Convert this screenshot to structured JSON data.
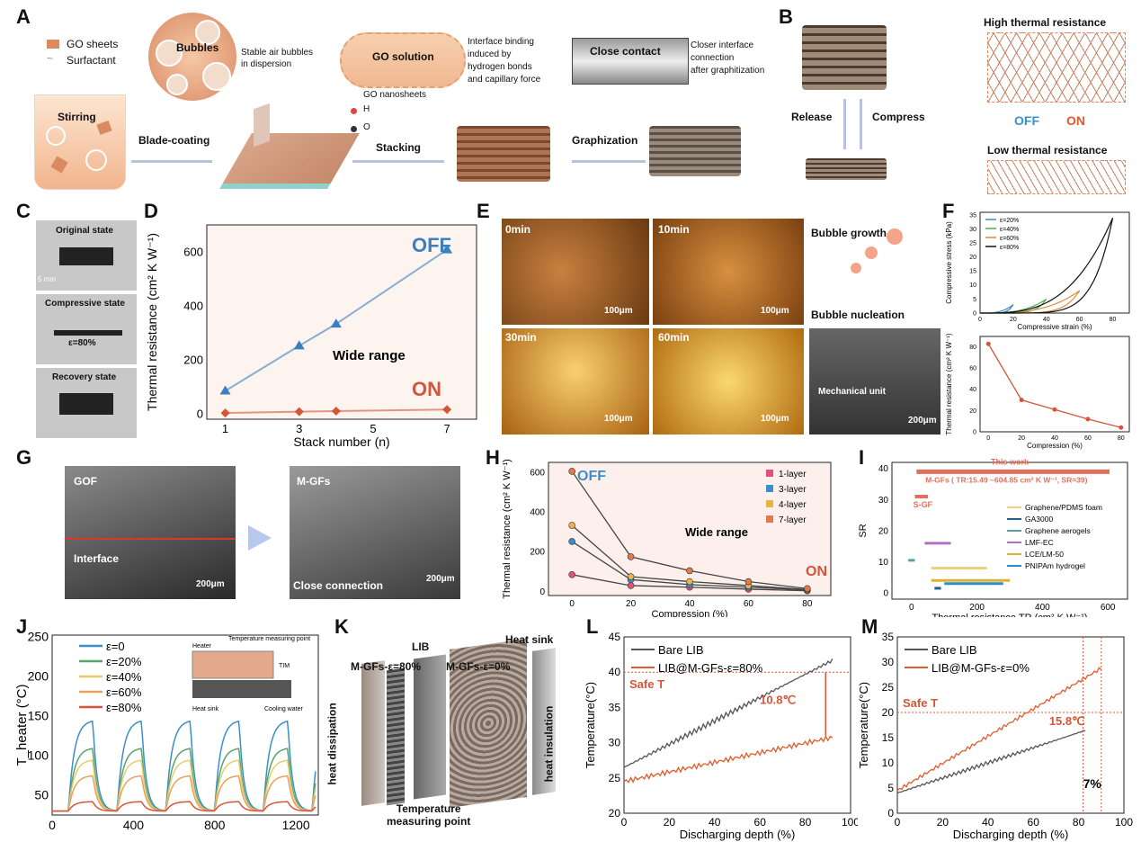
{
  "panel_letters": [
    "A",
    "B",
    "C",
    "D",
    "E",
    "F",
    "G",
    "H",
    "I",
    "J",
    "K",
    "L",
    "M"
  ],
  "a": {
    "legend_go_sheets": "GO sheets",
    "legend_surfactant": "Surfactant",
    "bubbles": "Bubbles",
    "stable": "Stable air bubbles\nin dispersion",
    "stirring": "Stirring",
    "blade": "Blade-coating",
    "go_solution": "GO solution",
    "interface": "Interface binding\ninduced by\nhydrogen bonds\nand capillary force",
    "nanosheets": "GO nanosheets",
    "h": "H",
    "o": "O",
    "stacking": "Stacking",
    "close_contact": "Close contact",
    "closer": "Closer interface\nconnection\nafter graphitization",
    "graphization": "Graphization"
  },
  "b": {
    "high": "High thermal resistance",
    "release": "Release",
    "compress": "Compress",
    "off": "OFF",
    "on": "ON",
    "low": "Low thermal resistance"
  },
  "c": {
    "original": "Original state",
    "scale": "5 mm",
    "compressive": "Compressive state",
    "strain": "ε=80%",
    "recovery": "Recovery state"
  },
  "e": {
    "t0": "0min",
    "t10": "10min",
    "t30": "30min",
    "t60": "60min",
    "scale": "100μm",
    "growth": "Bubble growth",
    "nucleation": "Bubble nucleation",
    "mech": "Mechanical unit",
    "scale2": "200μm"
  },
  "g": {
    "gof": "GOF",
    "interface": "Interface",
    "scale": "200μm",
    "mgfs": "M-GFs",
    "close": "Close connection"
  },
  "k": {
    "lib": "LIB",
    "heat_sink": "Heat sink",
    "mgfs80": "M-GFs-ε=80%",
    "mgfs0": "M-GFs-ε=0%",
    "dissipation": "heat dissipation",
    "insulation": "heat insulation",
    "temp_point": "Temperature\nmeasuring point"
  },
  "chart_data": [
    {
      "id": "D",
      "type": "scatter",
      "xlabel": "Stack number (n)",
      "ylabel": "Thermal resistance (cm² K W⁻¹)",
      "xlim": [
        0.5,
        7.8
      ],
      "ylim": [
        -20,
        700
      ],
      "xticks": [
        1,
        3,
        5,
        7
      ],
      "yticks": [
        0,
        200,
        400,
        600
      ],
      "series": [
        {
          "name": "OFF",
          "x": [
            1,
            3,
            4,
            7
          ],
          "y": [
            85,
            252,
            333,
            608
          ],
          "color": "#3a7fc0"
        },
        {
          "name": "ON",
          "x": [
            1,
            3,
            4,
            7
          ],
          "y": [
            3,
            8,
            10,
            16
          ],
          "color": "#d4553a"
        }
      ],
      "annotation": "Wide range"
    },
    {
      "id": "F1",
      "type": "line",
      "xlabel": "Compressive strain (%)",
      "ylabel": "Compressive stress (kPa)",
      "xticks": [
        0,
        20,
        40,
        60,
        80
      ],
      "yticks": [
        0,
        5,
        10,
        15,
        20,
        25,
        30,
        35
      ],
      "legend": [
        "ε=20%",
        "ε=40%",
        "ε=60%",
        "ε=80%"
      ],
      "legend_colors": [
        "#3a8fc9",
        "#4caf50",
        "#e08a3c",
        "#111111"
      ]
    },
    {
      "id": "F2",
      "type": "line",
      "xlabel": "Compression (%)",
      "ylabel": "Thermal resistance (cm² K W⁻¹)",
      "x": [
        0,
        20,
        40,
        60,
        80
      ],
      "y": [
        83,
        30,
        21,
        12,
        4
      ],
      "xticks": [
        0,
        20,
        40,
        60,
        80
      ],
      "yticks": [
        0,
        20,
        40,
        60,
        80
      ]
    },
    {
      "id": "H",
      "type": "line",
      "xlabel": "Compression (%)",
      "ylabel": "Thermal resistance (cm² K W⁻¹)",
      "x": [
        0,
        20,
        40,
        60,
        80
      ],
      "xticks": [
        0,
        20,
        40,
        60,
        80
      ],
      "yticks": [
        0,
        200,
        400,
        600
      ],
      "series": [
        {
          "name": "1-layer",
          "y": [
            85,
            30,
            22,
            12,
            4
          ],
          "color": "#e0507a"
        },
        {
          "name": "3-layer",
          "y": [
            252,
            60,
            35,
            22,
            8
          ],
          "color": "#3a8fc9"
        },
        {
          "name": "4-layer",
          "y": [
            333,
            75,
            50,
            30,
            10
          ],
          "color": "#e8b44c"
        },
        {
          "name": "7-layer",
          "y": [
            605,
            175,
            105,
            50,
            15
          ],
          "color": "#e07a4c"
        }
      ],
      "annotations": [
        "OFF",
        "Wide range",
        "ON"
      ]
    },
    {
      "id": "I",
      "type": "scatter",
      "xlabel": "Thermal resistance TR (cm² K W⁻¹)",
      "ylabel": "SR",
      "xticks": [
        0,
        200,
        400,
        600
      ],
      "yticks": [
        0,
        10,
        20,
        30,
        40
      ],
      "this_work": "This work",
      "this_work_detail": "M-GFs ( TR:15.49 ~604.85 cm² K W⁻¹, SR=39)",
      "sgf": "S-GF",
      "legend": [
        "Graphene/PDMS foam",
        "GA3000",
        "Graphene aerogels",
        "LMF-EC",
        "LCE/LM-50",
        "PNIPAm hydrogel"
      ]
    },
    {
      "id": "J",
      "type": "line",
      "ylabel": "T_heater (°C)",
      "xticks": [
        0,
        400,
        800,
        1200
      ],
      "yticks": [
        50,
        100,
        150,
        200,
        250
      ],
      "legend": [
        "ε=0",
        "ε=20%",
        "ε=40%",
        "ε=60%",
        "ε=80%"
      ],
      "legend_colors": [
        "#3a8fc9",
        "#5aa36a",
        "#e8cc6a",
        "#e8a060",
        "#d4553a"
      ],
      "peaks": [
        145,
        110,
        95,
        75,
        42
      ],
      "inset_labels": [
        "Heater",
        "Temperature measuring point",
        "TIM",
        "Heat sink",
        "Cooling water"
      ]
    },
    {
      "id": "L",
      "type": "line",
      "xlabel": "Discharging depth (%)",
      "ylabel": "Temperature(°C)",
      "xticks": [
        0,
        20,
        40,
        60,
        80,
        100
      ],
      "yticks": [
        20,
        25,
        30,
        35,
        40,
        45
      ],
      "series": [
        {
          "name": "Bare LIB",
          "color": "#555555"
        },
        {
          "name": "LIB@M-GFs-ε=80%",
          "color": "#e05a2c"
        }
      ],
      "safe_label": "Safe T",
      "delta": "10.8℃"
    },
    {
      "id": "M",
      "type": "line",
      "xlabel": "Discharging depth (%)",
      "ylabel": "Temperature(°C)",
      "xticks": [
        0,
        20,
        40,
        60,
        80,
        100
      ],
      "yticks": [
        0,
        5,
        10,
        15,
        20,
        25,
        30,
        35
      ],
      "series": [
        {
          "name": "Bare LIB",
          "color": "#555555"
        },
        {
          "name": "LIB@M-GFs-ε=0%",
          "color": "#e05a2c"
        }
      ],
      "safe_label": "Safe T",
      "delta": "15.8℃",
      "pct": "7%"
    }
  ]
}
